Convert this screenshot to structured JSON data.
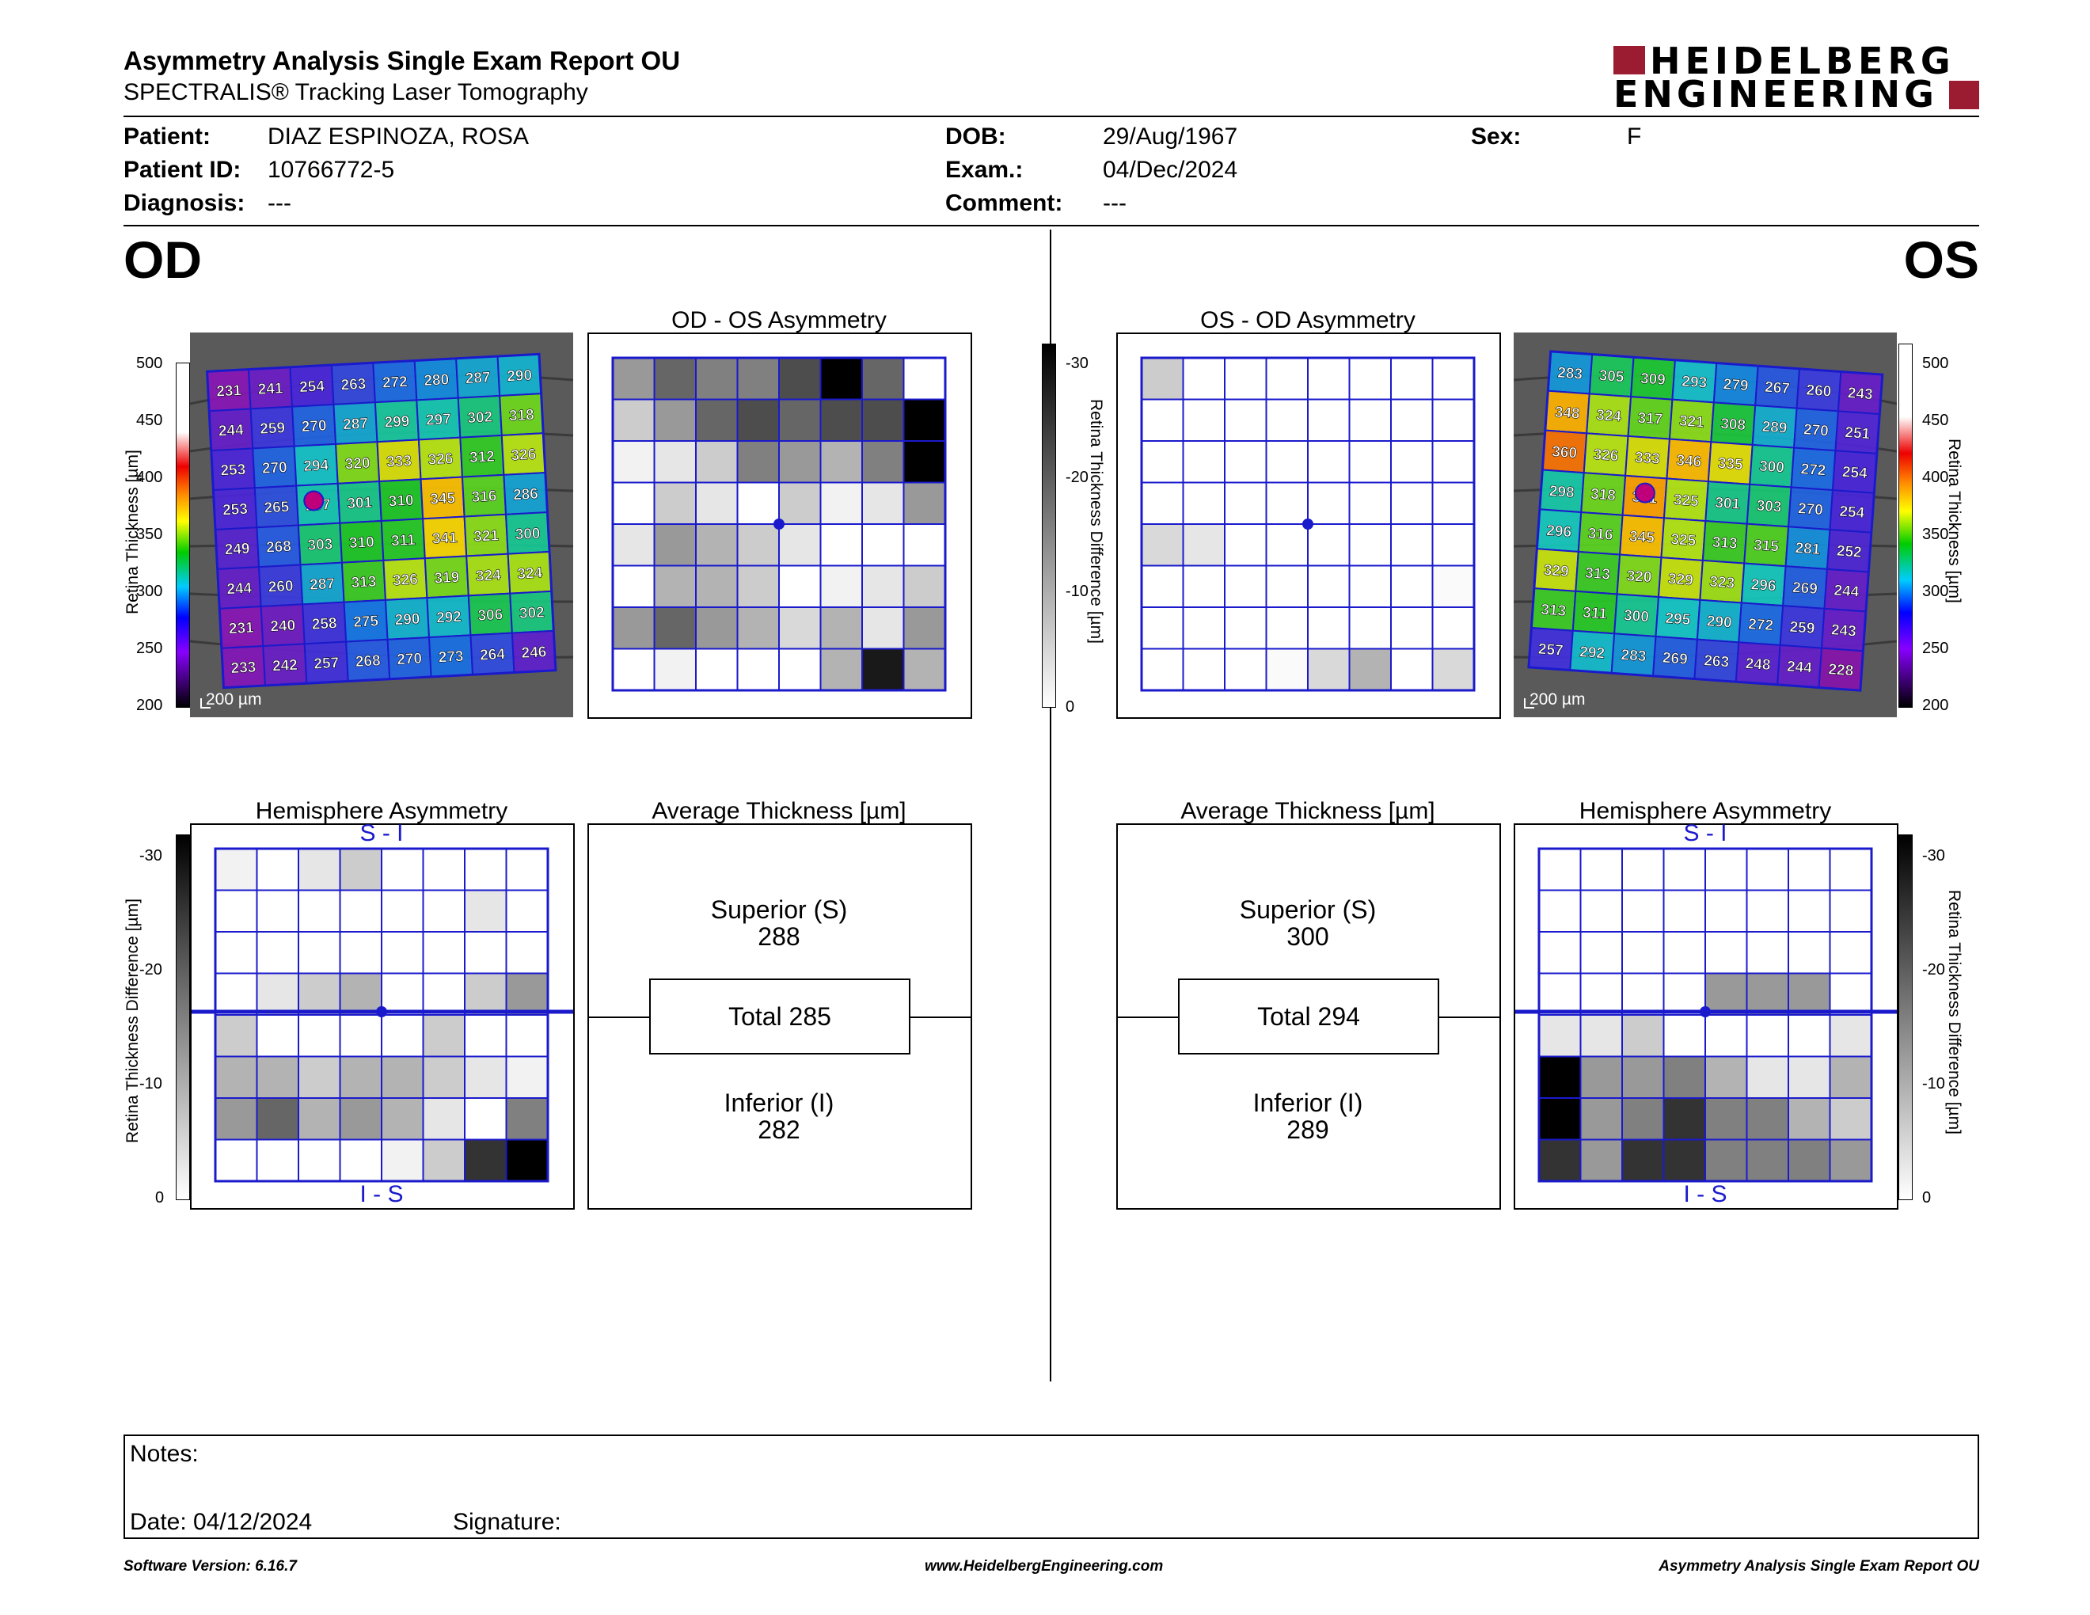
{
  "header": {
    "title": "Asymmetry Analysis Single Exam Report OU",
    "subtitle": "SPECTRALIS® Tracking Laser Tomography",
    "logo_line1": "HEIDELBERG",
    "logo_line2": "ENGINEERING"
  },
  "patient": {
    "patient_label": "Patient:",
    "patient_value": "DIAZ ESPINOZA, ROSA",
    "id_label": "Patient ID:",
    "id_value": "10766772-5",
    "diagnosis_label": "Diagnosis:",
    "diagnosis_value": "---",
    "dob_label": "DOB:",
    "dob_value": "29/Aug/1967",
    "exam_label": "Exam.:",
    "exam_value": "04/Dec/2024",
    "comment_label": "Comment:",
    "comment_value": "---",
    "sex_label": "Sex:",
    "sex_value": "F"
  },
  "od": {
    "eye": "OD",
    "asym_title": "OD - OS Asymmetry",
    "hemi_title": "Hemisphere Asymmetry",
    "avg_title": "Average Thickness [µm]",
    "superior_label": "Superior (S)",
    "superior_value": "288",
    "total_label": "Total 285",
    "inferior_label": "Inferior (I)",
    "inferior_value": "282",
    "scale_bar": "200 µm",
    "thickness_grid": [
      [
        231,
        241,
        254,
        263,
        272,
        280,
        287,
        290
      ],
      [
        244,
        259,
        270,
        287,
        299,
        297,
        302,
        318
      ],
      [
        253,
        270,
        294,
        320,
        333,
        326,
        312,
        326
      ],
      [
        253,
        265,
        297,
        301,
        310,
        345,
        316,
        286
      ],
      [
        249,
        268,
        303,
        310,
        311,
        341,
        321,
        300
      ],
      [
        244,
        260,
        287,
        313,
        326,
        319,
        324,
        324
      ],
      [
        231,
        240,
        258,
        275,
        290,
        292,
        306,
        302
      ],
      [
        233,
        242,
        257,
        268,
        270,
        273,
        264,
        246
      ]
    ],
    "asym_grid": [
      [
        0.4,
        0.6,
        0.5,
        0.5,
        0.7,
        1.0,
        0.6,
        0.0
      ],
      [
        0.2,
        0.4,
        0.6,
        0.7,
        0.6,
        0.7,
        0.7,
        1.0
      ],
      [
        0.05,
        0.1,
        0.2,
        0.5,
        0.4,
        0.3,
        0.5,
        1.0
      ],
      [
        0.0,
        0.2,
        0.1,
        0.0,
        0.2,
        0.05,
        0.1,
        0.4
      ],
      [
        0.1,
        0.4,
        0.3,
        0.2,
        0.1,
        0.0,
        0.0,
        0.0
      ],
      [
        0.0,
        0.3,
        0.3,
        0.2,
        0.0,
        0.05,
        0.1,
        0.2
      ],
      [
        0.4,
        0.6,
        0.4,
        0.3,
        0.15,
        0.3,
        0.1,
        0.4
      ],
      [
        0.0,
        0.05,
        0.0,
        0.0,
        0.0,
        0.3,
        0.9,
        0.3
      ]
    ],
    "hemi_grid": [
      [
        0.05,
        0.0,
        0.1,
        0.2,
        0.0,
        0.0,
        0.0,
        0.0
      ],
      [
        0.0,
        0.0,
        0.0,
        0.0,
        0.0,
        0.0,
        0.1,
        0.0
      ],
      [
        0.0,
        0.0,
        0.0,
        0.0,
        0.0,
        0.0,
        0.0,
        0.0
      ],
      [
        0.0,
        0.1,
        0.2,
        0.3,
        0.0,
        0.0,
        0.2,
        0.4
      ],
      [
        0.2,
        0.0,
        0.0,
        0.0,
        0.0,
        0.2,
        0.0,
        0.0
      ],
      [
        0.3,
        0.3,
        0.2,
        0.3,
        0.3,
        0.2,
        0.1,
        0.05
      ],
      [
        0.4,
        0.6,
        0.3,
        0.4,
        0.3,
        0.1,
        0.0,
        0.5
      ],
      [
        0.0,
        0.0,
        0.0,
        0.0,
        0.05,
        0.2,
        0.8,
        1.0
      ]
    ],
    "hemi_top": "S - I",
    "hemi_bottom": "I - S"
  },
  "os": {
    "eye": "OS",
    "asym_title": "OS - OD Asymmetry",
    "hemi_title": "Hemisphere Asymmetry",
    "avg_title": "Average Thickness [µm]",
    "superior_label": "Superior (S)",
    "superior_value": "300",
    "total_label": "Total 294",
    "inferior_label": "Inferior (I)",
    "inferior_value": "289",
    "scale_bar": "200 µm",
    "thickness_grid": [
      [
        283,
        305,
        309,
        293,
        279,
        267,
        260,
        243
      ],
      [
        348,
        324,
        317,
        321,
        308,
        289,
        270,
        251
      ],
      [
        360,
        326,
        333,
        346,
        335,
        300,
        272,
        254
      ],
      [
        298,
        318,
        351,
        325,
        301,
        303,
        270,
        254
      ],
      [
        296,
        316,
        345,
        325,
        313,
        315,
        281,
        252
      ],
      [
        329,
        313,
        320,
        329,
        323,
        296,
        269,
        244
      ],
      [
        313,
        311,
        300,
        295,
        290,
        272,
        259,
        243
      ],
      [
        257,
        292,
        283,
        269,
        263,
        248,
        244,
        228
      ]
    ],
    "asym_grid": [
      [
        0.2,
        0.0,
        0.0,
        0.0,
        0.0,
        0.0,
        0.0,
        0.0
      ],
      [
        0.0,
        0.0,
        0.0,
        0.0,
        0.0,
        0.0,
        0.0,
        0.0
      ],
      [
        0.0,
        0.0,
        0.0,
        0.0,
        0.0,
        0.0,
        0.0,
        0.0
      ],
      [
        0.0,
        0.0,
        0.0,
        0.0,
        0.0,
        0.0,
        0.0,
        0.0
      ],
      [
        0.15,
        0.1,
        0.0,
        0.0,
        0.0,
        0.0,
        0.0,
        0.0
      ],
      [
        0.0,
        0.0,
        0.0,
        0.0,
        0.0,
        0.0,
        0.0,
        0.02
      ],
      [
        0.0,
        0.0,
        0.0,
        0.0,
        0.0,
        0.0,
        0.0,
        0.0
      ],
      [
        0.0,
        0.0,
        0.0,
        0.02,
        0.15,
        0.3,
        0.0,
        0.15
      ]
    ],
    "hemi_grid": [
      [
        0.0,
        0.0,
        0.0,
        0.0,
        0.0,
        0.0,
        0.0,
        0.0
      ],
      [
        0.0,
        0.0,
        0.0,
        0.0,
        0.0,
        0.0,
        0.0,
        0.0
      ],
      [
        0.0,
        0.0,
        0.0,
        0.0,
        0.0,
        0.0,
        0.0,
        0.0
      ],
      [
        0.0,
        0.0,
        0.0,
        0.0,
        0.4,
        0.4,
        0.4,
        0.0
      ],
      [
        0.1,
        0.1,
        0.2,
        0.0,
        0.0,
        0.0,
        0.0,
        0.1
      ],
      [
        1.0,
        0.4,
        0.4,
        0.5,
        0.3,
        0.1,
        0.1,
        0.3
      ],
      [
        1.0,
        0.4,
        0.5,
        0.8,
        0.5,
        0.5,
        0.3,
        0.2
      ],
      [
        0.8,
        0.4,
        0.8,
        0.8,
        0.5,
        0.5,
        0.5,
        0.4
      ]
    ],
    "hemi_top": "S - I",
    "hemi_bottom": "I - S"
  },
  "scales": {
    "thickness_ticks": [
      "500",
      "450",
      "400",
      "350",
      "300",
      "250",
      "200"
    ],
    "thickness_label": "Retina  Thickness [µm]",
    "diff_ticks": [
      "-30",
      "-20",
      "-10",
      "0"
    ],
    "diff_label": "Retina Thickness Difference [µm]"
  },
  "notes": {
    "notes_label": "Notes:",
    "date_label": "Date: 04/12/2024",
    "signature_label": "Signature:"
  },
  "footer": {
    "version": "Software Version: 6.16.7",
    "website": "www.HeidelbergEngineering.com",
    "report": "Asymmetry Analysis Single Exam Report OU"
  },
  "colors": {
    "grid_blue": "#1a1acc",
    "logo_red": "#9b1b30"
  }
}
